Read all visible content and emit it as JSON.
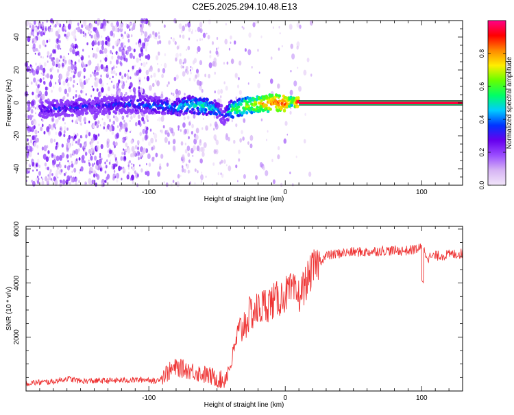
{
  "title": "C2E5.2025.294.10.48.E13",
  "colors": {
    "snr_line": "#ee3333",
    "background": "#ffffff",
    "axis": "#000000"
  },
  "chart_data": [
    {
      "type": "heatmap",
      "name": "spectrogram",
      "xlabel": "Height of straight line (km)",
      "ylabel": "Frequency (Hz)",
      "xlim": [
        -190,
        130
      ],
      "ylim": [
        -50,
        50
      ],
      "xticks": [
        -100,
        0,
        100
      ],
      "yticks": [
        -40,
        -20,
        0,
        20,
        40
      ],
      "colorbar": {
        "label": "Normalized spectral amplitude",
        "range": [
          0,
          1
        ],
        "ticks": [
          0.0,
          0.2,
          0.4,
          0.6,
          0.8
        ],
        "tick_labels": [
          "0.0",
          "0.2",
          "0.4",
          "0.6",
          "0.8"
        ],
        "colormap": [
          "#f2e6fa",
          "#d6b4f4",
          "#9a4dff",
          "#6600ee",
          "#0033ff",
          "#00ccff",
          "#00ff66",
          "#66ff00",
          "#ffee00",
          "#ff8800",
          "#ff0000",
          "#ff0088"
        ]
      },
      "signal_trace": {
        "description_free": true,
        "x": [
          -180,
          -160,
          -140,
          -120,
          -100,
          -80,
          -70,
          -60,
          -50,
          -45,
          -40,
          -35,
          -30,
          -20,
          -10,
          0,
          5,
          10,
          130
        ],
        "freq": [
          -4,
          -3,
          -2,
          -1,
          -1,
          -3,
          -1,
          -2,
          -4,
          -8,
          -4,
          -3,
          -2,
          -1,
          0,
          0,
          1,
          0,
          0
        ],
        "amplitude": [
          0.3,
          0.32,
          0.3,
          0.35,
          0.38,
          0.42,
          0.5,
          0.52,
          0.45,
          0.3,
          0.55,
          0.6,
          0.65,
          0.72,
          0.85,
          0.88,
          0.6,
          0.95,
          0.95
        ]
      },
      "stable_band": {
        "x_start": 10,
        "x_end": 130,
        "freq": 0,
        "amplitude": 0.95
      }
    },
    {
      "type": "line",
      "name": "snr",
      "xlabel": "Height of straight line (km)",
      "ylabel": "SNR (10 * v/v)",
      "xlim": [
        -190,
        130
      ],
      "ylim": [
        0,
        6100
      ],
      "xticks": [
        -100,
        0,
        100
      ],
      "yticks": [
        2000,
        4000,
        6000
      ],
      "series": [
        {
          "name": "SNR",
          "x": [
            -190,
            -170,
            -160,
            -150,
            -140,
            -120,
            -100,
            -95,
            -90,
            -80,
            -70,
            -60,
            -50,
            -45,
            -40,
            -35,
            -30,
            -25,
            -20,
            -15,
            -10,
            -5,
            0,
            5,
            10,
            15,
            20,
            25,
            30,
            40,
            50,
            60,
            70,
            80,
            90,
            95,
            100,
            105,
            110,
            120,
            130
          ],
          "values": [
            250,
            300,
            420,
            320,
            330,
            350,
            380,
            300,
            500,
            800,
            700,
            550,
            400,
            300,
            900,
            2000,
            2500,
            2900,
            3000,
            3200,
            3300,
            3400,
            3600,
            3700,
            3500,
            4000,
            4500,
            4800,
            5000,
            5100,
            5150,
            5150,
            5200,
            5200,
            5200,
            5250,
            5300,
            4950,
            5000,
            5050,
            5100
          ]
        }
      ]
    }
  ]
}
